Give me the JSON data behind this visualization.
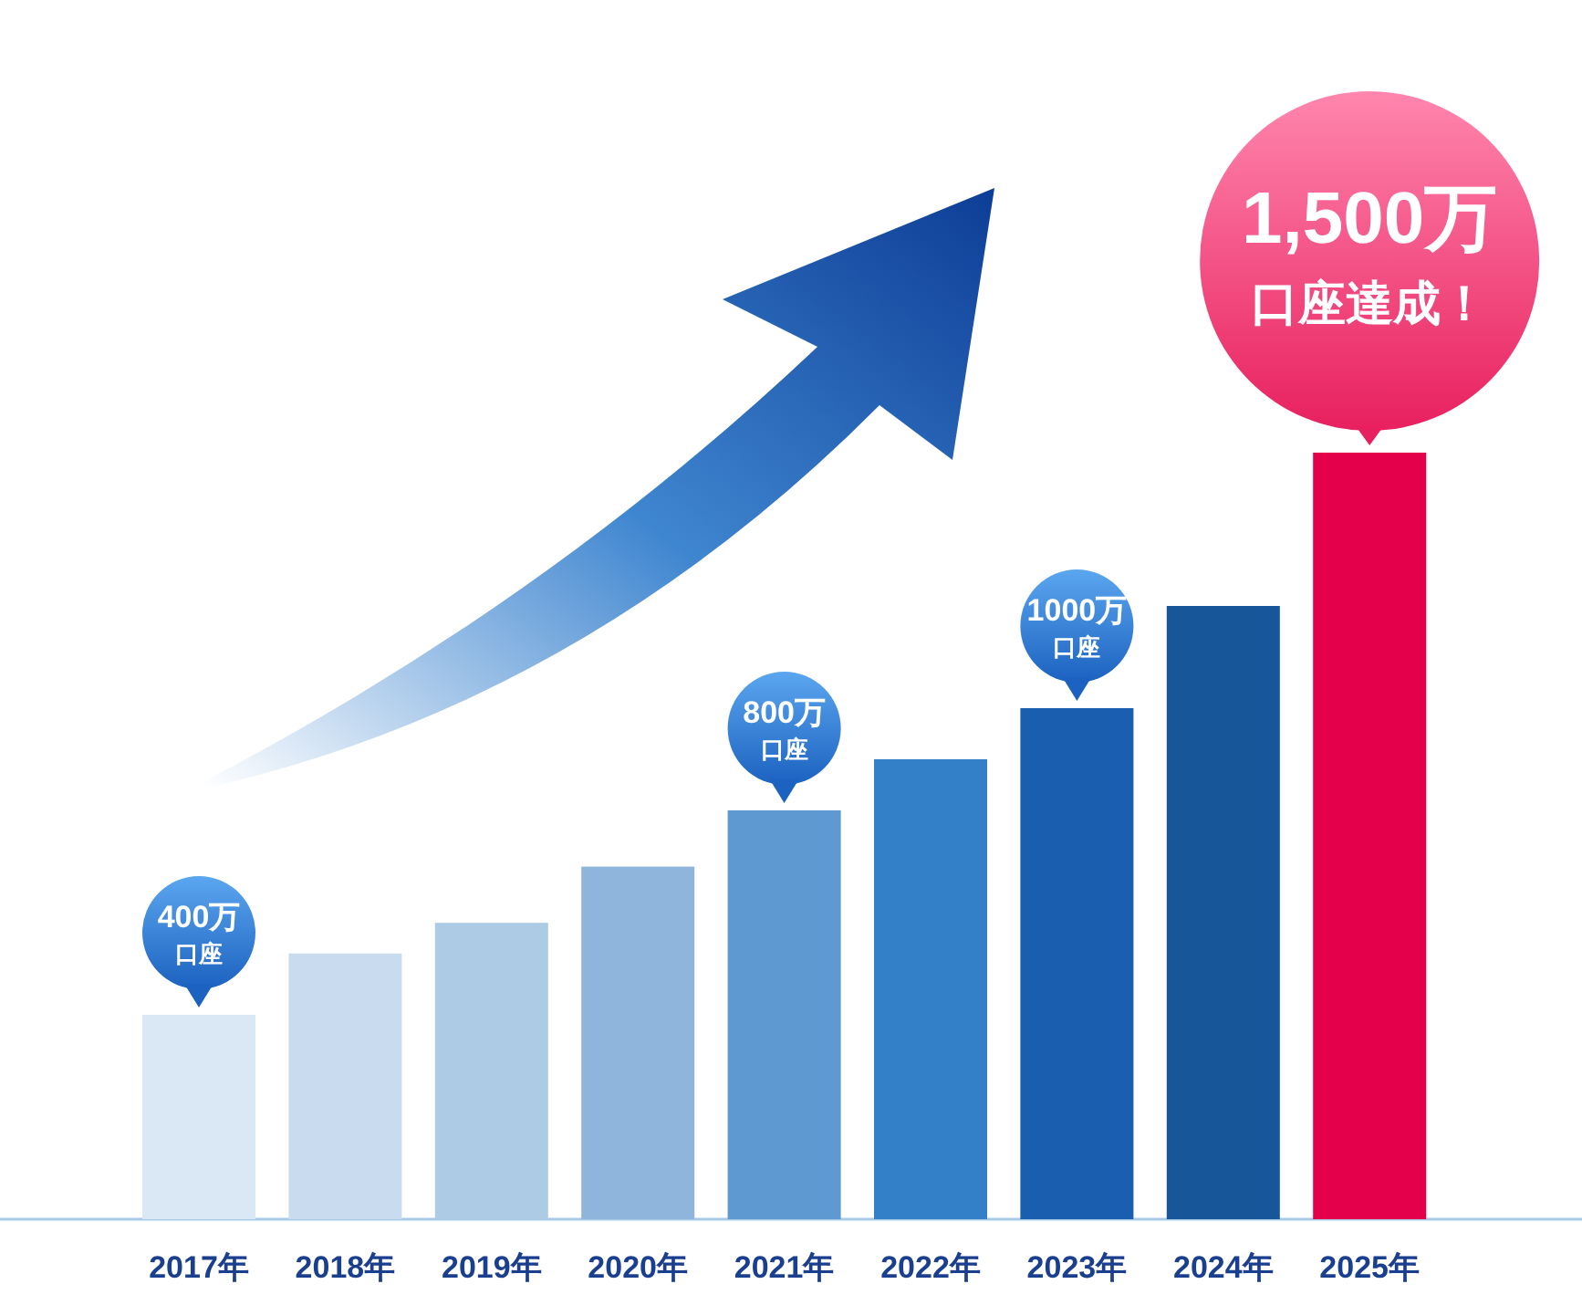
{
  "chart_data": {
    "type": "bar",
    "categories": [
      "2017年",
      "2018年",
      "2019年",
      "2020年",
      "2021年",
      "2022年",
      "2023年",
      "2024年",
      "2025年"
    ],
    "values": [
      400,
      520,
      580,
      690,
      800,
      900,
      1000,
      1200,
      1500
    ],
    "colors": [
      "#dae8f5",
      "#c9dcef",
      "#aecbe6",
      "#8fb5dc",
      "#5f99d1",
      "#3480c8",
      "#1a5eb0",
      "#175699",
      "#e4004b"
    ],
    "value_labels": [
      "400万口座",
      null,
      null,
      null,
      "800万口座",
      null,
      "1000万口座",
      null,
      "1,500万口座達成！"
    ]
  }
}
